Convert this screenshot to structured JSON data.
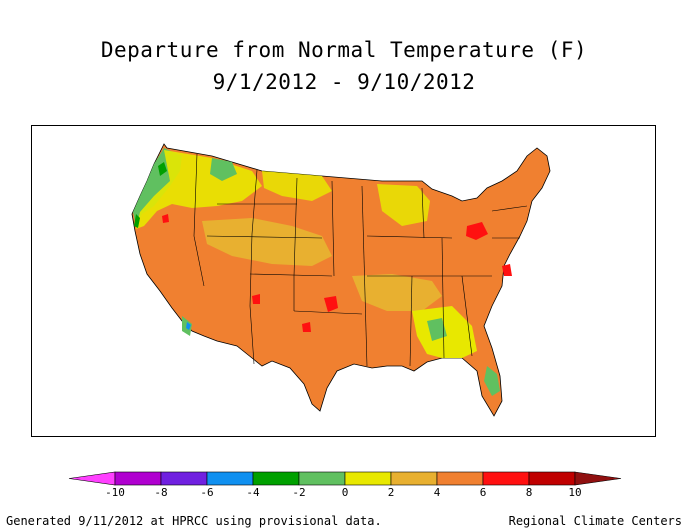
{
  "title": "Departure from Normal Temperature (F)",
  "subtitle": "9/1/2012 - 9/10/2012",
  "legend": {
    "bins": [
      {
        "from": -12,
        "to": -10,
        "color": "#ff40ff"
      },
      {
        "from": -10,
        "to": -8,
        "color": "#b000d0"
      },
      {
        "from": -8,
        "to": -6,
        "color": "#7020e0"
      },
      {
        "from": -6,
        "to": -4,
        "color": "#1090f0"
      },
      {
        "from": -4,
        "to": -2,
        "color": "#00a000"
      },
      {
        "from": -2,
        "to": 0,
        "color": "#60c060"
      },
      {
        "from": 0,
        "to": 2,
        "color": "#e8e800"
      },
      {
        "from": 2,
        "to": 4,
        "color": "#e8b030"
      },
      {
        "from": 4,
        "to": 6,
        "color": "#f08030"
      },
      {
        "from": 6,
        "to": 8,
        "color": "#ff1010"
      },
      {
        "from": 8,
        "to": 10,
        "color": "#c00000"
      },
      {
        "from": 10,
        "to": 12,
        "color": "#901010"
      }
    ],
    "tick_labels": [
      "-10",
      "-8",
      "-6",
      "-4",
      "-2",
      "0",
      "2",
      "4",
      "6",
      "8",
      "10"
    ]
  },
  "colors": {
    "warm": "#f08030",
    "mild": "#e8b030",
    "neutral": "#e8e800",
    "cool": "#60c060",
    "cold": "#00a000",
    "hot": "#ff1010",
    "border": "#000000"
  },
  "footer": {
    "left": "Generated 9/11/2012 at HPRCC using provisional data.",
    "right": "Regional Climate Centers"
  }
}
